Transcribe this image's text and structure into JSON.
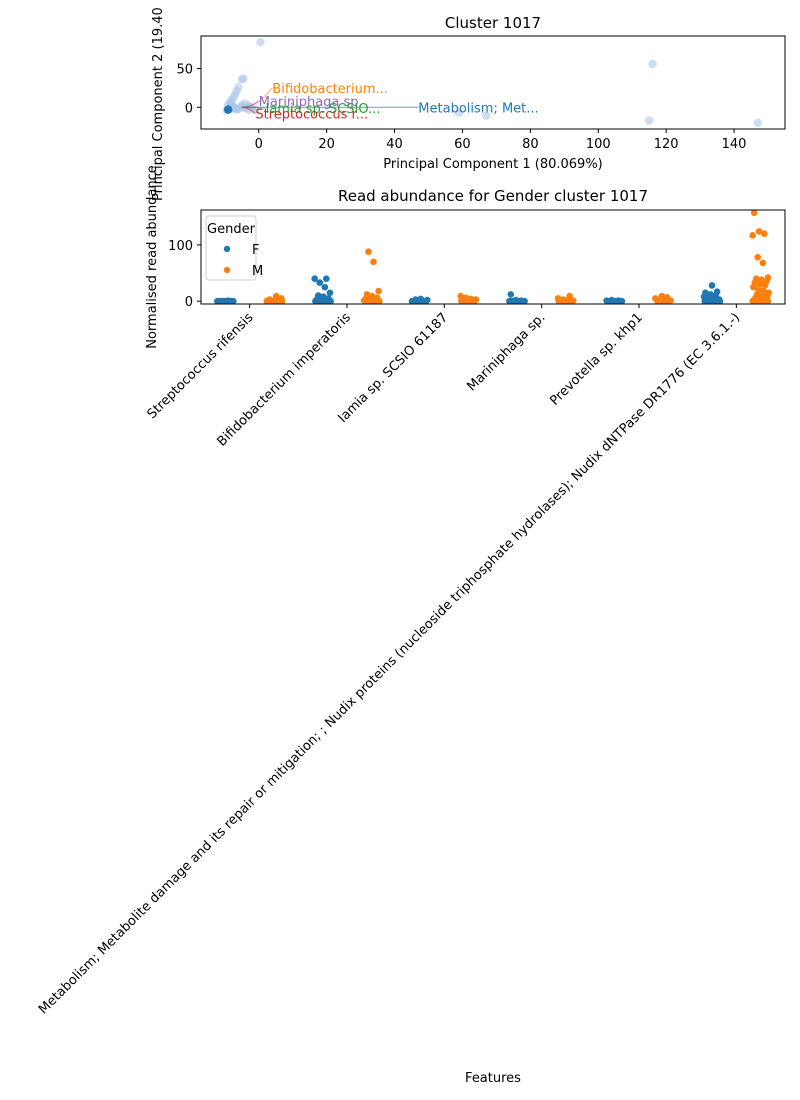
{
  "colors": {
    "blue": "#1f77b4",
    "orange": "#ff7f0e",
    "green": "#2ca02c",
    "red": "#d62728",
    "purple": "#9467bd",
    "pca_point": "#aec7e8"
  },
  "chart_data": [
    {
      "type": "scatter",
      "title": "Cluster 1017",
      "xlabel": "Principal Component 1 (80.069%)",
      "ylabel": "Principal Component 2 (19.40",
      "xlim": [
        -17,
        155
      ],
      "ylim": [
        -28,
        92
      ],
      "xticks": [
        0,
        20,
        40,
        60,
        80,
        100,
        120,
        140
      ],
      "yticks": [
        0,
        50
      ],
      "grid": false,
      "points": [
        {
          "x": 0.5,
          "y": 84
        },
        {
          "x": 116,
          "y": 56
        },
        {
          "x": 115,
          "y": -17
        },
        {
          "x": 147,
          "y": -20
        },
        {
          "x": 67,
          "y": -11
        },
        {
          "x": 59,
          "y": -7
        },
        {
          "x": -5,
          "y": 36
        },
        {
          "x": -4.5,
          "y": 37
        },
        {
          "x": -6,
          "y": 26
        },
        {
          "x": -6.5,
          "y": 21
        },
        {
          "x": -7,
          "y": 16
        },
        {
          "x": -7.5,
          "y": 12
        },
        {
          "x": -8,
          "y": 9
        },
        {
          "x": -8.5,
          "y": 6
        },
        {
          "x": -9,
          "y": 3
        },
        {
          "x": -4,
          "y": 5
        },
        {
          "x": -3,
          "y": 2
        },
        {
          "x": -5,
          "y": 0
        },
        {
          "x": -6,
          "y": -2
        },
        {
          "x": -7,
          "y": -1
        },
        {
          "x": -8,
          "y": -2
        },
        {
          "x": -9,
          "y": -3
        },
        {
          "x": -9.5,
          "y": -4
        },
        {
          "x": -4,
          "y": -1
        },
        {
          "x": -2,
          "y": -2
        },
        {
          "x": -3,
          "y": -3
        },
        {
          "x": -1,
          "y": -3
        },
        {
          "x": -6.5,
          "y": -3
        },
        {
          "x": -7.5,
          "y": 1
        },
        {
          "x": -8,
          "y": 4
        },
        {
          "x": -5,
          "y": 3
        },
        {
          "x": -2.5,
          "y": 1
        }
      ],
      "highlight": {
        "x": -9,
        "y": -3
      },
      "annotations": [
        {
          "text": "Bifidobacterium...",
          "color": "orange",
          "x": 4,
          "y": 25,
          "tx": -5,
          "ty": 0
        },
        {
          "text": "Mariniphaga sp.",
          "color": "purple",
          "x": 0,
          "y": 8,
          "tx": -5,
          "ty": 0
        },
        {
          "text": "Iamia sp. SCSIO...",
          "color": "green",
          "x": 2,
          "y": -1,
          "tx": -5,
          "ty": 0
        },
        {
          "text": "Streptococcus r...",
          "color": "red",
          "x": -1,
          "y": -8,
          "tx": -5,
          "ty": 0
        },
        {
          "text": "Metabolism; Met...",
          "color": "blue",
          "x": 47,
          "y": 0,
          "tx": -5,
          "ty": 0
        }
      ]
    },
    {
      "type": "strip",
      "title": "Read abundance for Gender cluster 1017",
      "xlabel": "Features",
      "ylabel": "Normalised read abundance",
      "ylim": [
        -5,
        162
      ],
      "yticks": [
        0,
        100
      ],
      "grid": false,
      "legend": {
        "title": "Gender",
        "position": "top-left"
      },
      "categories": [
        "Streptococcus rifensis",
        "Bifidobacterium imperatoris",
        "Iamia sp. SCSIO 61187",
        "Mariniphaga sp.",
        "Prevotella sp. khp1",
        "Metabolism; Metabolite damage and its repair or mitigation; ; Nudix proteins (nucleoside triphosphate hydrolases); Nudix dNTPase DR1776 (EC 3.6.1.-)"
      ],
      "series": [
        {
          "name": "F",
          "color": "blue",
          "values": [
            [
              0,
              0,
              0,
              0,
              0,
              0,
              0,
              0,
              0,
              0,
              0,
              0,
              1,
              0,
              0
            ],
            [
              40,
              40,
              33,
              25,
              15,
              10,
              8,
              5,
              3,
              2,
              1,
              0,
              0,
              0,
              0,
              0,
              0,
              0,
              0,
              0,
              0,
              0
            ],
            [
              0,
              0,
              0,
              0,
              1,
              2,
              3,
              4,
              0,
              0,
              0
            ],
            [
              12,
              2,
              1,
              0,
              0,
              0,
              0,
              0,
              0,
              0,
              0
            ],
            [
              0,
              0,
              0,
              1,
              1,
              2,
              0,
              0,
              0,
              0,
              0
            ],
            [
              28,
              17,
              15,
              12,
              10,
              8,
              6,
              4,
              3,
              2,
              1,
              0,
              0,
              0,
              0,
              0,
              0,
              0,
              0,
              0,
              0,
              0,
              0,
              0
            ]
          ]
        },
        {
          "name": "M",
          "color": "orange",
          "values": [
            [
              9,
              5,
              3,
              2,
              1,
              1,
              0,
              0,
              0,
              0,
              0,
              0,
              0
            ],
            [
              88,
              70,
              18,
              12,
              9,
              6,
              4,
              3,
              2,
              1,
              0,
              0,
              0,
              0,
              0,
              0,
              0,
              0
            ],
            [
              9,
              6,
              4,
              3,
              2,
              1,
              0,
              0,
              0,
              0,
              0,
              0,
              0
            ],
            [
              9,
              5,
              3,
              2,
              1,
              0,
              0,
              0,
              0,
              0,
              0,
              0
            ],
            [
              9,
              7,
              5,
              3,
              2,
              1,
              0,
              0,
              0,
              0,
              0,
              0
            ],
            [
              157,
              124,
              120,
              117,
              78,
              68,
              42,
              40,
              38,
              35,
              33,
              30,
              28,
              25,
              20,
              18,
              15,
              12,
              10,
              8,
              6,
              5,
              4,
              3,
              2,
              1,
              0,
              0,
              0,
              0,
              0,
              0,
              0,
              0
            ]
          ]
        }
      ]
    }
  ]
}
